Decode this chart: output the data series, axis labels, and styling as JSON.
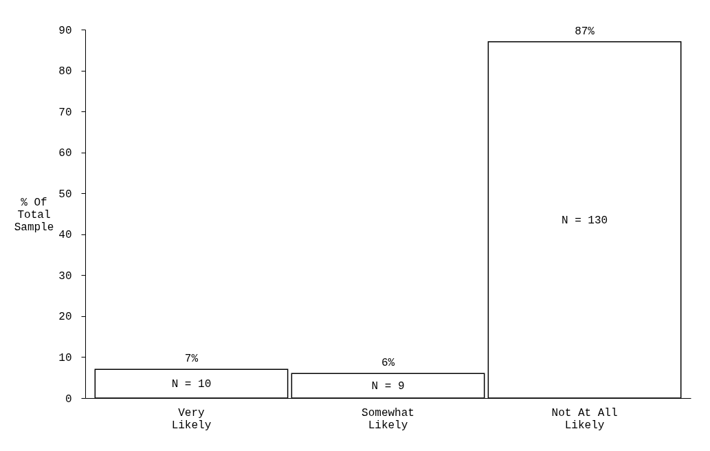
{
  "chart_data": {
    "type": "bar",
    "categories": [
      "Very\nLikely",
      "Somewhat\nLikely",
      "Not At All\nLikely"
    ],
    "values": [
      7,
      6,
      87
    ],
    "color": "#ffffff",
    "value_labels": [
      "7%",
      "6%",
      "87%"
    ],
    "ylabel": "% Of\nTotal\nSample",
    "ylim": [
      0,
      90
    ],
    "yticks": [
      0,
      10,
      20,
      30,
      40,
      50,
      60,
      70,
      80,
      90
    ],
    "grid": false,
    "annotations": [
      "N = 10",
      "N = 9",
      "N = 130"
    ]
  }
}
